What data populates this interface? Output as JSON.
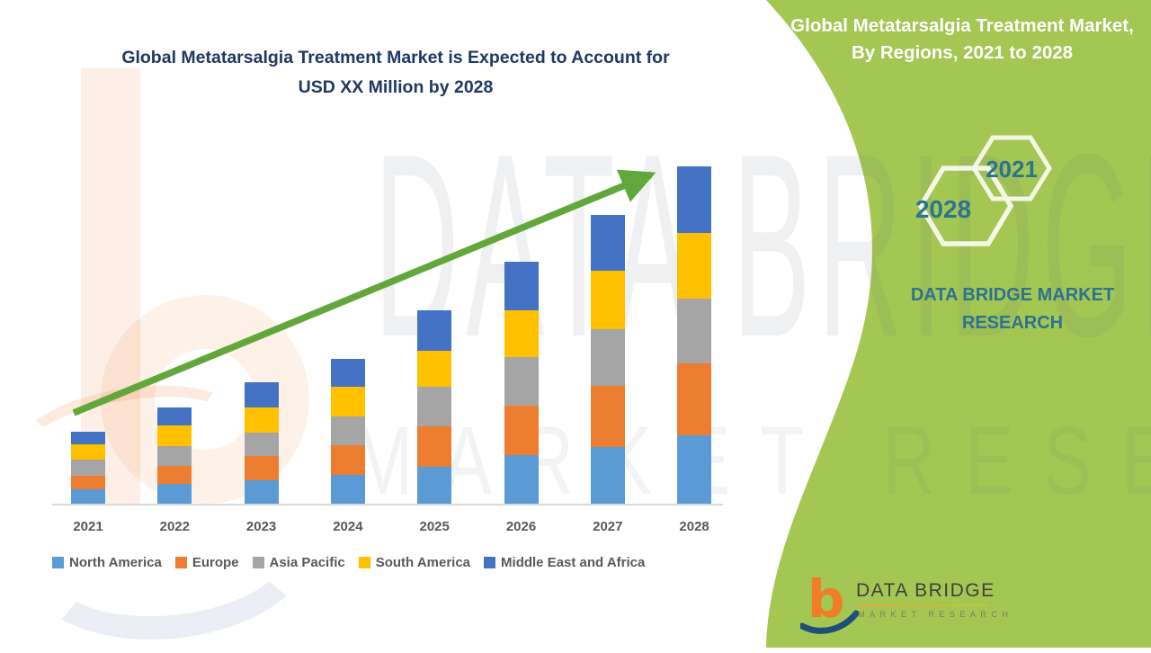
{
  "page_type": "market research infographic",
  "chart_title": {
    "line1": "Global Metatarsalgia Treatment Market is Expected to Account for",
    "line2": "USD XX Million by 2028",
    "color": "#1F3864"
  },
  "chart_data": {
    "type": "bar",
    "stacked": true,
    "categories": [
      "2021",
      "2022",
      "2023",
      "2024",
      "2025",
      "2026",
      "2027",
      "2028"
    ],
    "series": [
      {
        "name": "North America",
        "color": "#5B9BD5",
        "values": [
          16,
          22,
          26,
          32,
          41,
          54,
          63,
          76
        ]
      },
      {
        "name": "Europe",
        "color": "#ED7D31",
        "values": [
          15,
          20,
          27,
          33,
          45,
          55,
          68,
          80
        ]
      },
      {
        "name": "Asia Pacific",
        "color": "#A5A5A5",
        "values": [
          18,
          22,
          26,
          32,
          44,
          54,
          63,
          72
        ]
      },
      {
        "name": "South America",
        "color": "#FFC000",
        "values": [
          17,
          23,
          28,
          33,
          40,
          52,
          65,
          73
        ]
      },
      {
        "name": "Middle East and Africa",
        "color": "#4472C4",
        "values": [
          14,
          20,
          28,
          31,
          45,
          54,
          62,
          74
        ]
      }
    ],
    "totals": [
      80,
      107,
      135,
      161,
      215,
      269,
      321,
      375
    ],
    "title": "Global Metatarsalgia Treatment Market is Expected to Account for USD XX Million by 2028",
    "xlabel": "",
    "ylabel": "",
    "y_axis_shown": false,
    "grid": false,
    "legend_position": "bottom",
    "annotations": [
      "green upward growth trend arrow from 2021 to 2028"
    ],
    "trend_arrow_color": "#62A73B"
  },
  "side_panel": {
    "background": "#A4C753",
    "title": "Global Metatarsalgia Treatment Market, By Regions, 2021 to 2028",
    "hexagon_large": "2028",
    "hexagon_small": "2021",
    "brand_text": "DATA BRIDGE MARKET RESEARCH",
    "text_color": "#2C7390"
  },
  "watermark": {
    "row1": "DATA BRIDGE",
    "row2": "MARKET RESEARCH"
  },
  "logo": {
    "name": "DATA BRIDGE",
    "subtitle": "MARKET RESEARCH"
  }
}
